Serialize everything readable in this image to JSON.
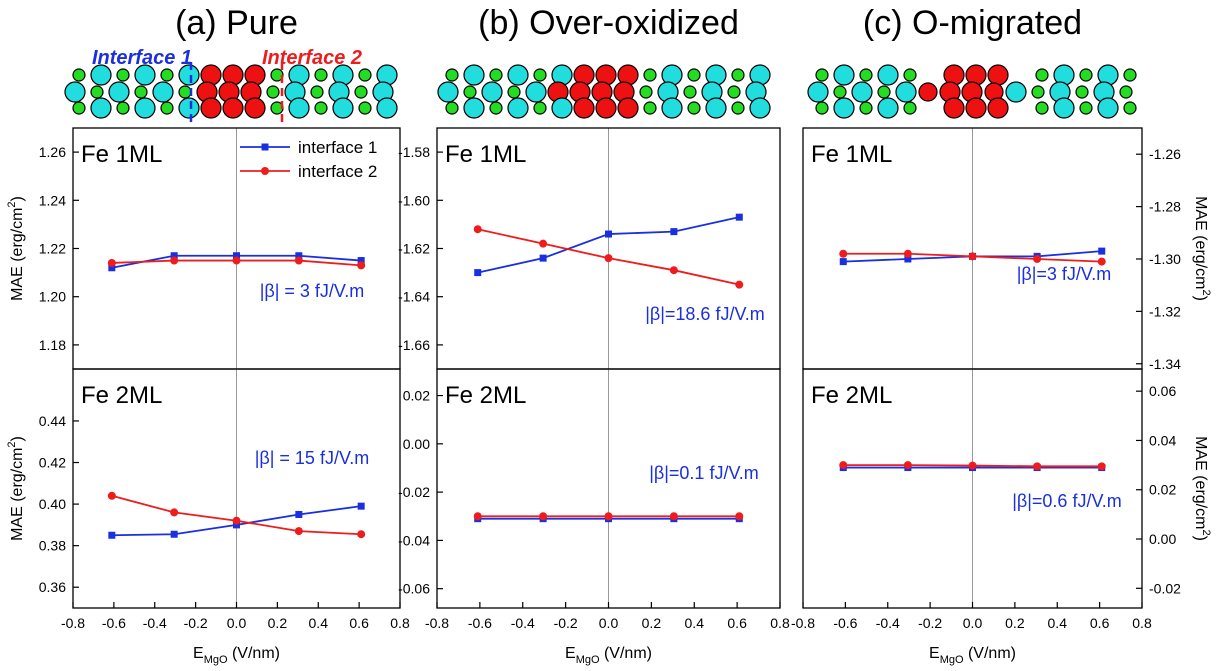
{
  "figure": {
    "interface_labels": [
      "Interface 1",
      "Interface 2"
    ]
  },
  "chart_data": [
    {
      "type": "line",
      "title": "(a) Pure",
      "panel_label": "Fe 1ML",
      "annotation": "|β| = 3 fJ/V.m",
      "ylabel": [
        "MAE (erg/cm",
        "2",
        ")"
      ],
      "y_axis_side": "left",
      "legend": "upper right",
      "x": [
        -0.61,
        -0.305,
        0,
        0.305,
        0.61
      ],
      "xlim": [
        -0.8,
        0.8
      ],
      "ylim": [
        1.17,
        1.27
      ],
      "yticks": [
        1.18,
        {
          "value": 1.2,
          "label": "1.20"
        },
        1.22,
        1.24,
        1.26
      ],
      "series": [
        {
          "name": "interface 1",
          "color": "#1a2fe0",
          "marker": "square",
          "values": [
            1.212,
            1.217,
            1.217,
            1.217,
            1.215
          ]
        },
        {
          "name": "interface 2",
          "color": "#ee1c1c",
          "marker": "circle",
          "values": [
            1.214,
            1.215,
            1.215,
            1.215,
            1.213
          ]
        }
      ]
    },
    {
      "type": "line",
      "panel_label": "Fe 2ML",
      "annotation": "|β| = 15 fJ/V.m",
      "ylabel": [
        "MAE (erg/cm",
        "2",
        ")"
      ],
      "y_axis_side": "left",
      "xlabel": [
        "E",
        "MgO",
        " (V/nm)"
      ],
      "x": [
        -0.61,
        -0.305,
        0,
        0.305,
        0.61
      ],
      "xlim": [
        -0.8,
        0.8
      ],
      "xticks": [
        -0.8,
        -0.6,
        -0.4,
        -0.2,
        {
          "value": 0,
          "label": "0.0"
        },
        0.2,
        0.4,
        0.6,
        0.8
      ],
      "ylim": [
        0.35,
        0.465
      ],
      "yticks": [
        0.36,
        0.38,
        {
          "value": 0.4,
          "label": "0.40"
        },
        0.42,
        0.44
      ],
      "series": [
        {
          "color": "#1a2fe0",
          "marker": "square",
          "values": [
            0.385,
            0.3855,
            0.39,
            0.395,
            0.399
          ]
        },
        {
          "color": "#ee1c1c",
          "marker": "circle",
          "values": [
            0.404,
            0.396,
            0.392,
            0.387,
            0.3855
          ]
        }
      ]
    },
    {
      "type": "line",
      "title": "(b) Over-oxidized",
      "panel_label": "Fe 1ML",
      "annotation": "|β|=18.6 fJ/V.m",
      "y_axis_side": "left",
      "x": [
        -0.61,
        -0.305,
        0,
        0.305,
        0.61
      ],
      "xlim": [
        -0.8,
        0.8
      ],
      "ylim": [
        -1.67,
        -1.57
      ],
      "yticks": [
        -1.66,
        -1.64,
        -1.62,
        {
          "value": -1.6,
          "label": "-1.60"
        },
        -1.58
      ],
      "series": [
        {
          "color": "#1a2fe0",
          "marker": "square",
          "values": [
            -1.63,
            -1.624,
            -1.614,
            -1.613,
            -1.607
          ]
        },
        {
          "color": "#ee1c1c",
          "marker": "circle",
          "values": [
            -1.612,
            -1.618,
            -1.624,
            -1.629,
            -1.635
          ]
        }
      ]
    },
    {
      "type": "line",
      "panel_label": "Fe 2ML",
      "annotation": "|β|=0.1 fJ/V.m",
      "y_axis_side": "left",
      "xlabel": [
        "E",
        "MgO",
        " (V/nm)"
      ],
      "x": [
        -0.61,
        -0.305,
        0,
        0.305,
        0.61
      ],
      "xlim": [
        -0.8,
        0.8
      ],
      "xticks": [
        -0.8,
        -0.6,
        -0.4,
        -0.2,
        {
          "value": 0,
          "label": "0.0"
        },
        0.2,
        0.4,
        0.6,
        0.8
      ],
      "ylim": [
        -0.068,
        0.031
      ],
      "yticks": [
        -0.06,
        -0.04,
        -0.02,
        {
          "value": 0,
          "label": "0.00"
        },
        0.02
      ],
      "series": [
        {
          "color": "#1a2fe0",
          "marker": "square",
          "values": [
            -0.031,
            -0.031,
            -0.031,
            -0.031,
            -0.031
          ]
        },
        {
          "color": "#ee1c1c",
          "marker": "circle",
          "values": [
            -0.03,
            -0.03,
            -0.03,
            -0.03,
            -0.03
          ]
        }
      ]
    },
    {
      "type": "line",
      "title": "(c) O-migrated",
      "panel_label": "Fe 1ML",
      "annotation": "|β|=3 fJ/V.m",
      "ylabel": [
        "MAE (erg/cm",
        "2",
        ")"
      ],
      "y_axis_side": "right",
      "x": [
        -0.61,
        -0.305,
        0,
        0.305,
        0.61
      ],
      "xlim": [
        -0.8,
        0.8
      ],
      "ylim": [
        -1.342,
        -1.25
      ],
      "yticks": [
        -1.34,
        -1.32,
        {
          "value": -1.3,
          "label": "-1.30"
        },
        -1.28,
        -1.26
      ],
      "series": [
        {
          "color": "#1a2fe0",
          "marker": "square",
          "values": [
            -1.301,
            -1.3,
            -1.299,
            -1.299,
            -1.297
          ]
        },
        {
          "color": "#ee1c1c",
          "marker": "circle",
          "values": [
            -1.298,
            -1.298,
            -1.299,
            -1.3,
            -1.301
          ]
        }
      ]
    },
    {
      "type": "line",
      "panel_label": "Fe 2ML",
      "annotation": "|β|=0.6 fJ/V.m",
      "ylabel": [
        "MAE (erg/cm",
        "2",
        ")"
      ],
      "y_axis_side": "right",
      "xlabel": [
        "E",
        "MgO",
        " (V/nm)"
      ],
      "x": [
        -0.61,
        -0.305,
        0,
        0.305,
        0.61
      ],
      "xlim": [
        -0.8,
        0.8
      ],
      "xticks": [
        -0.8,
        -0.6,
        -0.4,
        -0.2,
        {
          "value": 0,
          "label": "0.0"
        },
        0.2,
        0.4,
        0.6,
        0.8
      ],
      "ylim": [
        -0.028,
        0.069
      ],
      "yticks": [
        -0.02,
        {
          "value": 0,
          "label": "0.00"
        },
        0.02,
        0.04,
        0.06
      ],
      "series": [
        {
          "color": "#1a2fe0",
          "marker": "square",
          "values": [
            0.029,
            0.029,
            0.029,
            0.029,
            0.029
          ]
        },
        {
          "color": "#ee1c1c",
          "marker": "circle",
          "values": [
            0.03,
            0.03,
            0.0298,
            0.0295,
            0.0295
          ]
        }
      ]
    }
  ]
}
